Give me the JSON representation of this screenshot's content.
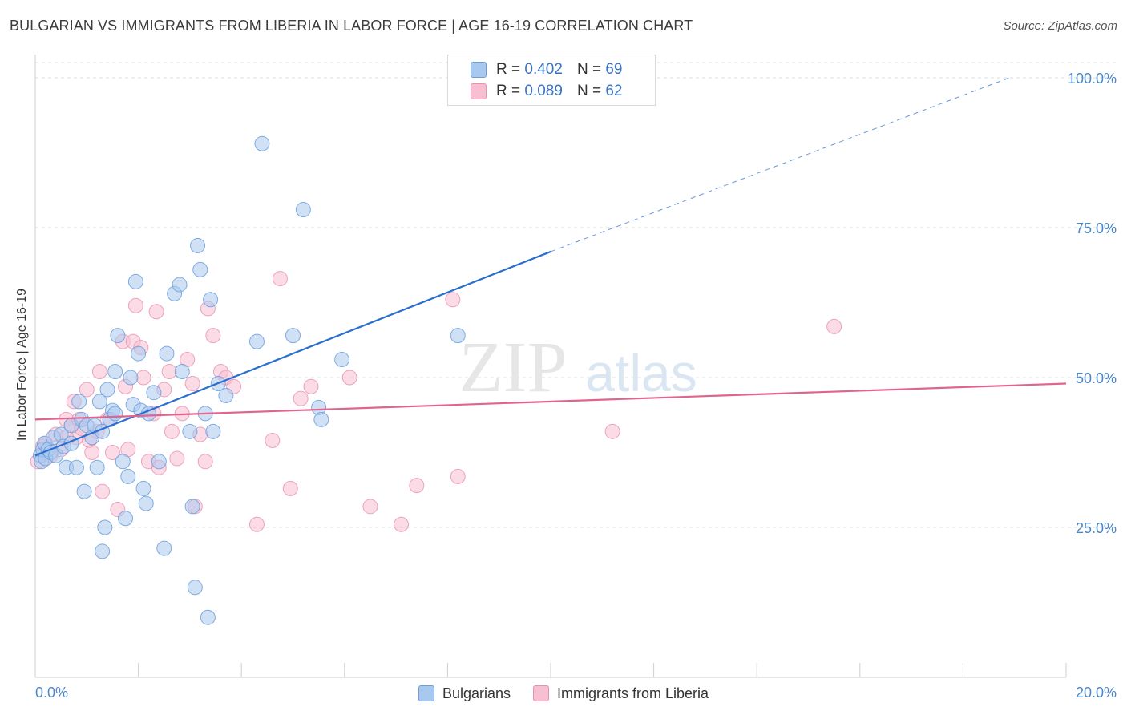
{
  "header": {
    "title": "BULGARIAN VS IMMIGRANTS FROM LIBERIA IN LABOR FORCE | AGE 16-19 CORRELATION CHART",
    "source": "Source: ZipAtlas.com"
  },
  "legend": {
    "r_label": "R =",
    "n_label": "N =",
    "rows": [
      {
        "r": "0.402",
        "n": "69"
      },
      {
        "r": "0.089",
        "n": "62"
      }
    ]
  },
  "colors": {
    "blue_fill": "#a9c8ef",
    "blue_stroke": "#6a9fdc",
    "blue_line": "#2a6ecf",
    "pink_fill": "#f8bfd2",
    "pink_stroke": "#e98fb0",
    "pink_line": "#e0648e",
    "tick_text": "#4a86c8",
    "grid": "#dcdcdc"
  },
  "chart_data": {
    "type": "scatter",
    "title": "BULGARIAN VS IMMIGRANTS FROM LIBERIA IN LABOR FORCE | AGE 16-19 CORRELATION CHART",
    "xlabel": "",
    "ylabel": "In Labor Force | Age 16-19",
    "xlim": [
      0,
      20
    ],
    "ylim": [
      0,
      100
    ],
    "x_tick_labels": [
      "0.0%",
      "20.0%"
    ],
    "y_ticks": [
      25,
      50,
      75,
      100
    ],
    "y_tick_labels": [
      "25.0%",
      "50.0%",
      "75.0%",
      "100.0%"
    ],
    "watermark": {
      "zip": "ZIP",
      "atlas": "atlas"
    },
    "series": [
      {
        "name": "Bulgarians",
        "r": 0.402,
        "n": 69,
        "trend": {
          "x0": 0.0,
          "y0": 37.0,
          "x1": 10.0,
          "y1": 71.0,
          "dash_to_x": 18.9,
          "dash_to_y": 100.0
        },
        "points": [
          [
            0.1,
            37
          ],
          [
            0.12,
            36
          ],
          [
            0.15,
            38
          ],
          [
            0.18,
            39
          ],
          [
            0.2,
            36.5
          ],
          [
            0.25,
            38
          ],
          [
            0.3,
            37.5
          ],
          [
            0.35,
            40
          ],
          [
            0.4,
            37
          ],
          [
            0.5,
            40.5
          ],
          [
            0.55,
            38.5
          ],
          [
            0.6,
            35
          ],
          [
            0.7,
            39
          ],
          [
            0.7,
            42
          ],
          [
            0.8,
            35
          ],
          [
            0.85,
            46
          ],
          [
            0.9,
            43
          ],
          [
            0.95,
            31
          ],
          [
            1.0,
            42
          ],
          [
            1.1,
            40
          ],
          [
            1.15,
            42
          ],
          [
            1.2,
            35
          ],
          [
            1.25,
            46
          ],
          [
            1.3,
            41
          ],
          [
            1.35,
            25
          ],
          [
            1.4,
            48
          ],
          [
            1.45,
            43
          ],
          [
            1.5,
            44.5
          ],
          [
            1.55,
            44
          ],
          [
            1.55,
            51
          ],
          [
            1.6,
            57
          ],
          [
            1.7,
            36
          ],
          [
            1.75,
            26.5
          ],
          [
            1.8,
            33.5
          ],
          [
            1.85,
            50
          ],
          [
            1.9,
            45.5
          ],
          [
            1.95,
            66
          ],
          [
            2.0,
            54
          ],
          [
            2.05,
            44.5
          ],
          [
            2.1,
            31.5
          ],
          [
            2.15,
            29
          ],
          [
            2.2,
            44
          ],
          [
            2.3,
            47.5
          ],
          [
            2.4,
            36
          ],
          [
            2.5,
            21.5
          ],
          [
            2.55,
            54
          ],
          [
            2.7,
            64
          ],
          [
            2.8,
            65.5
          ],
          [
            2.85,
            51
          ],
          [
            3.0,
            41
          ],
          [
            3.05,
            28.5
          ],
          [
            3.1,
            15
          ],
          [
            3.15,
            72
          ],
          [
            3.2,
            68
          ],
          [
            3.3,
            44
          ],
          [
            3.35,
            10
          ],
          [
            3.4,
            63
          ],
          [
            3.45,
            41
          ],
          [
            3.55,
            49
          ],
          [
            3.7,
            47
          ],
          [
            4.4,
            89
          ],
          [
            4.3,
            56
          ],
          [
            5.0,
            57
          ],
          [
            5.2,
            78
          ],
          [
            5.5,
            45
          ],
          [
            5.55,
            43
          ],
          [
            5.95,
            53
          ],
          [
            8.2,
            57
          ],
          [
            1.3,
            21
          ]
        ]
      },
      {
        "name": "Immigrants from Liberia",
        "r": 0.089,
        "n": 62,
        "trend": {
          "x0": 0.0,
          "y0": 43.0,
          "x1": 20.0,
          "y1": 49.0
        },
        "points": [
          [
            0.05,
            36
          ],
          [
            0.15,
            38.5
          ],
          [
            0.2,
            39
          ],
          [
            0.3,
            37
          ],
          [
            0.4,
            40.5
          ],
          [
            0.5,
            38
          ],
          [
            0.6,
            43
          ],
          [
            0.7,
            42
          ],
          [
            0.75,
            46
          ],
          [
            0.8,
            40
          ],
          [
            0.85,
            43
          ],
          [
            0.9,
            41.5
          ],
          [
            1.0,
            48
          ],
          [
            1.05,
            39.5
          ],
          [
            1.1,
            37.5
          ],
          [
            1.2,
            41
          ],
          [
            1.25,
            51
          ],
          [
            1.3,
            31
          ],
          [
            1.4,
            43
          ],
          [
            1.5,
            37.5
          ],
          [
            1.6,
            28
          ],
          [
            1.7,
            56
          ],
          [
            1.75,
            48.5
          ],
          [
            1.8,
            38
          ],
          [
            1.9,
            56
          ],
          [
            1.95,
            62
          ],
          [
            2.05,
            55
          ],
          [
            2.1,
            50
          ],
          [
            2.2,
            36
          ],
          [
            2.3,
            44
          ],
          [
            2.35,
            61
          ],
          [
            2.4,
            35
          ],
          [
            2.5,
            48
          ],
          [
            2.6,
            51
          ],
          [
            2.65,
            41
          ],
          [
            2.75,
            36.5
          ],
          [
            2.85,
            44
          ],
          [
            2.95,
            53
          ],
          [
            3.05,
            49
          ],
          [
            3.1,
            28.5
          ],
          [
            3.2,
            40.5
          ],
          [
            3.3,
            36
          ],
          [
            3.35,
            61.5
          ],
          [
            3.45,
            57
          ],
          [
            3.6,
            51
          ],
          [
            3.7,
            50
          ],
          [
            3.85,
            48.5
          ],
          [
            4.3,
            25.5
          ],
          [
            4.6,
            39.5
          ],
          [
            4.75,
            66.5
          ],
          [
            4.95,
            31.5
          ],
          [
            5.15,
            46.5
          ],
          [
            5.35,
            48.5
          ],
          [
            6.1,
            50
          ],
          [
            6.5,
            28.5
          ],
          [
            7.1,
            25.5
          ],
          [
            7.4,
            32
          ],
          [
            8.1,
            63
          ],
          [
            8.2,
            33.5
          ],
          [
            11.2,
            41
          ],
          [
            15.5,
            58.5
          ],
          [
            0.6,
            40
          ]
        ]
      }
    ]
  },
  "bottom_legend": {
    "items": [
      {
        "label": "Bulgarians"
      },
      {
        "label": "Immigrants from Liberia"
      }
    ]
  }
}
